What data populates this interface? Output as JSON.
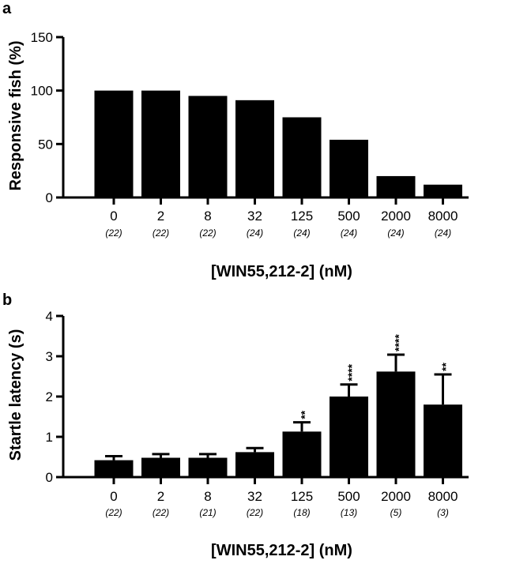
{
  "chart_data": [
    {
      "panel": "a",
      "type": "bar",
      "categories": [
        "0",
        "2",
        "8",
        "32",
        "125",
        "500",
        "2000",
        "8000"
      ],
      "sample_sizes": [
        "(22)",
        "(22)",
        "(22)",
        "(24)",
        "(24)",
        "(24)",
        "(24)",
        "(24)"
      ],
      "values": [
        100,
        100,
        95,
        91,
        75,
        54,
        20,
        12
      ],
      "xlabel": "[WIN55,212-2] (nM)",
      "ylabel": "Responsive fish (%)",
      "ylim": [
        0,
        150
      ],
      "yticks": [
        0,
        50,
        100,
        150
      ],
      "color": "#000000",
      "grid": false
    },
    {
      "panel": "b",
      "type": "bar",
      "categories": [
        "0",
        "2",
        "8",
        "32",
        "125",
        "500",
        "2000",
        "8000"
      ],
      "sample_sizes": [
        "(22)",
        "(22)",
        "(21)",
        "(22)",
        "(18)",
        "(13)",
        "(5)",
        "(3)"
      ],
      "values": [
        0.42,
        0.48,
        0.48,
        0.62,
        1.13,
        2.0,
        2.62,
        1.8
      ],
      "errors": [
        0.1,
        0.09,
        0.09,
        0.1,
        0.23,
        0.3,
        0.42,
        0.75
      ],
      "significance": [
        "",
        "",
        "",
        "",
        "**",
        "****",
        "****",
        "**"
      ],
      "xlabel": "[WIN55,212-2] (nM)",
      "ylabel": "Startle latency (s)",
      "ylim": [
        0,
        4
      ],
      "yticks": [
        0,
        1,
        2,
        3,
        4
      ],
      "color": "#000000",
      "grid": false
    }
  ]
}
